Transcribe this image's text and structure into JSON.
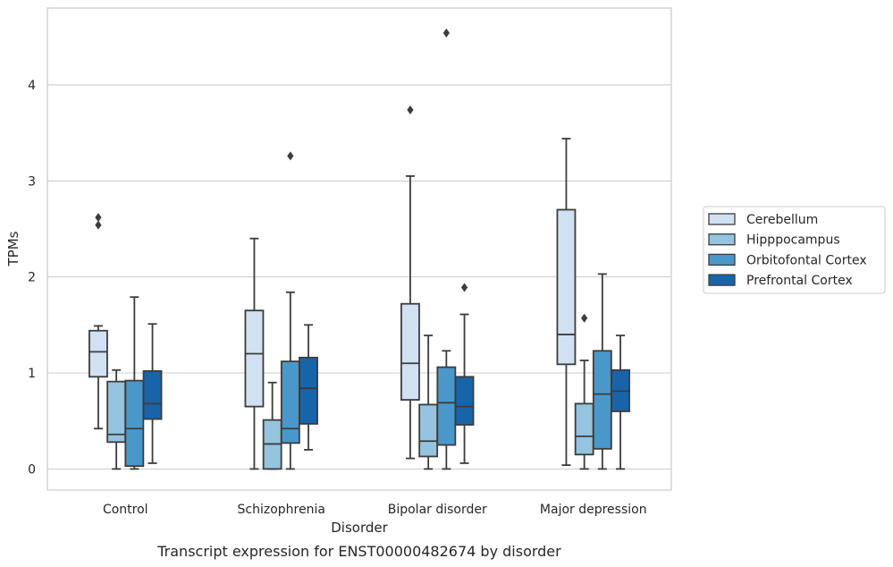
{
  "chart_data": {
    "type": "boxplot",
    "title": "",
    "caption": "Transcript expression for ENST00000482674 by disorder",
    "xlabel": "Disorder",
    "ylabel": "TPMs",
    "ylim": [
      -0.22,
      4.8
    ],
    "yticks": [
      0,
      1,
      2,
      3,
      4
    ],
    "grid": "horizontal",
    "legend_position": "right-outside",
    "categories": [
      "Control",
      "Schizophrenia",
      "Bipolar disorder",
      "Major depression"
    ],
    "series": [
      {
        "name": "Cerebellum",
        "color": "#d0e1f2",
        "boxes": [
          {
            "whisker_low": 0.42,
            "q1": 0.96,
            "median": 1.22,
            "q3": 1.44,
            "whisker_high": 1.49,
            "outliers": [
              2.54,
              2.62
            ]
          },
          {
            "whisker_low": 0.0,
            "q1": 0.65,
            "median": 1.2,
            "q3": 1.65,
            "whisker_high": 2.4,
            "outliers": []
          },
          {
            "whisker_low": 0.11,
            "q1": 0.72,
            "median": 1.1,
            "q3": 1.72,
            "whisker_high": 3.05,
            "outliers": [
              3.74
            ]
          },
          {
            "whisker_low": 0.04,
            "q1": 1.09,
            "median": 1.4,
            "q3": 2.7,
            "whisker_high": 3.44,
            "outliers": []
          }
        ]
      },
      {
        "name": "Hipppocampus",
        "color": "#94c4df",
        "boxes": [
          {
            "whisker_low": 0.0,
            "q1": 0.28,
            "median": 0.36,
            "q3": 0.91,
            "whisker_high": 1.03,
            "outliers": []
          },
          {
            "whisker_low": 0.0,
            "q1": 0.0,
            "median": 0.26,
            "q3": 0.51,
            "whisker_high": 0.9,
            "outliers": []
          },
          {
            "whisker_low": 0.0,
            "q1": 0.13,
            "median": 0.29,
            "q3": 0.67,
            "whisker_high": 1.39,
            "outliers": []
          },
          {
            "whisker_low": 0.0,
            "q1": 0.15,
            "median": 0.34,
            "q3": 0.68,
            "whisker_high": 1.13,
            "outliers": [
              1.57
            ]
          }
        ]
      },
      {
        "name": "Orbitofontal Cortex",
        "color": "#4a98c9",
        "boxes": [
          {
            "whisker_low": 0.0,
            "q1": 0.03,
            "median": 0.42,
            "q3": 0.92,
            "whisker_high": 1.79,
            "outliers": []
          },
          {
            "whisker_low": 0.0,
            "q1": 0.27,
            "median": 0.42,
            "q3": 1.12,
            "whisker_high": 1.84,
            "outliers": [
              3.26
            ]
          },
          {
            "whisker_low": 0.0,
            "q1": 0.25,
            "median": 0.69,
            "q3": 1.06,
            "whisker_high": 1.23,
            "outliers": [
              4.54
            ]
          },
          {
            "whisker_low": 0.0,
            "q1": 0.21,
            "median": 0.78,
            "q3": 1.23,
            "whisker_high": 2.03,
            "outliers": []
          }
        ]
      },
      {
        "name": "Prefrontal Cortex",
        "color": "#1764ab",
        "boxes": [
          {
            "whisker_low": 0.06,
            "q1": 0.52,
            "median": 0.68,
            "q3": 1.02,
            "whisker_high": 1.51,
            "outliers": []
          },
          {
            "whisker_low": 0.2,
            "q1": 0.47,
            "median": 0.84,
            "q3": 1.16,
            "whisker_high": 1.5,
            "outliers": []
          },
          {
            "whisker_low": 0.06,
            "q1": 0.46,
            "median": 0.65,
            "q3": 0.96,
            "whisker_high": 1.61,
            "outliers": [
              1.89
            ]
          },
          {
            "whisker_low": 0.0,
            "q1": 0.6,
            "median": 0.81,
            "q3": 1.03,
            "whisker_high": 1.39,
            "outliers": []
          }
        ]
      }
    ]
  }
}
